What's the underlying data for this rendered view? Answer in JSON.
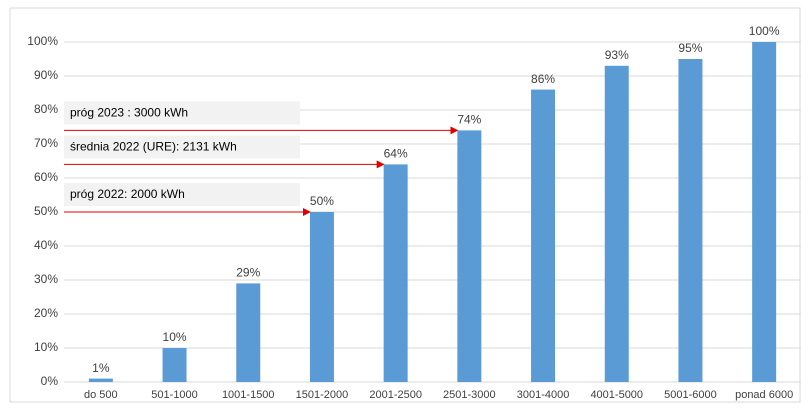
{
  "chart_data": {
    "type": "bar",
    "categories": [
      "do 500",
      "501-1000",
      "1001-1500",
      "1501-2000",
      "2001-2500",
      "2501-3000",
      "3001-4000",
      "4001-5000",
      "5001-6000",
      "ponad 6000"
    ],
    "values": [
      1,
      10,
      29,
      50,
      64,
      74,
      86,
      93,
      95,
      100
    ],
    "value_labels": [
      "1%",
      "10%",
      "29%",
      "50%",
      "64%",
      "74%",
      "86%",
      "93%",
      "95%",
      "100%"
    ],
    "color": "#5b9bd5",
    "ylim": [
      0,
      100
    ],
    "yticks": [
      {
        "value": 0,
        "label": "0%"
      },
      {
        "value": 10,
        "label": "10%"
      },
      {
        "value": 20,
        "label": "20%"
      },
      {
        "value": 30,
        "label": "30%"
      },
      {
        "value": 40,
        "label": "40%"
      },
      {
        "value": 50,
        "label": "50%"
      },
      {
        "value": 60,
        "label": "60%"
      },
      {
        "value": 70,
        "label": "70%"
      },
      {
        "value": 80,
        "label": "80%"
      },
      {
        "value": 90,
        "label": "90%"
      },
      {
        "value": 100,
        "label": "100%"
      }
    ],
    "grid": true,
    "annotations": [
      {
        "text": "próg 2023 : 3000 kWh",
        "y": 74
      },
      {
        "text": "średnia 2022 (URE): 2131 kWh",
        "y": 64
      },
      {
        "text": "próg 2022: 2000 kWh",
        "y": 50
      }
    ]
  }
}
